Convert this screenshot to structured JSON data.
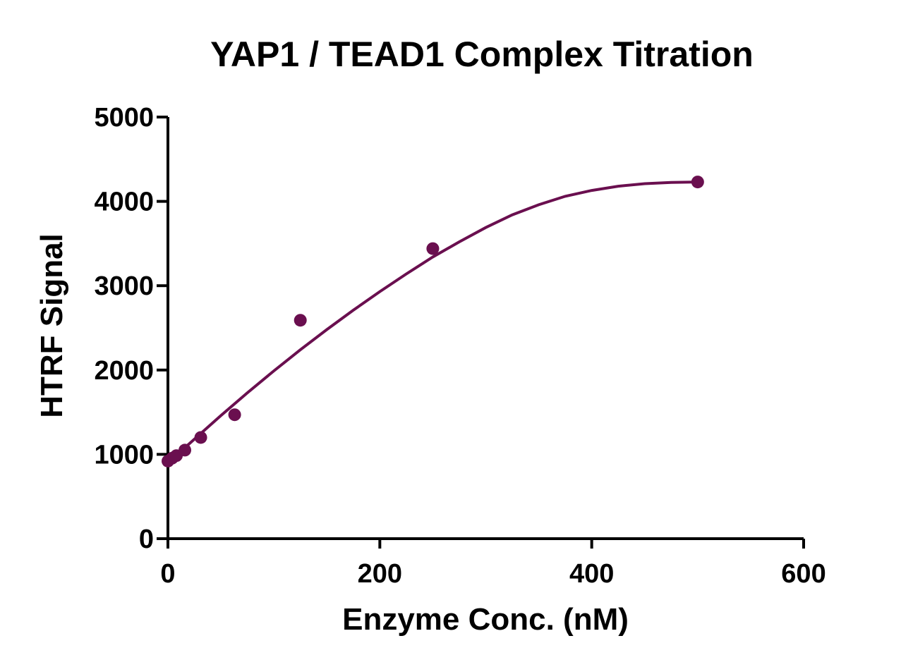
{
  "chart_data": {
    "type": "scatter",
    "title": "YAP1 / TEAD1 Complex Titration",
    "xlabel": "Enzyme Conc. (nM)",
    "ylabel": "HTRF Signal",
    "xlim": [
      0,
      600
    ],
    "ylim": [
      0,
      5000
    ],
    "xticks": [
      0,
      200,
      400,
      600
    ],
    "yticks": [
      0,
      1000,
      2000,
      3000,
      4000,
      5000
    ],
    "grid": false,
    "legend": "none",
    "color": "#6a0f4f",
    "series": [
      {
        "points": [
          {
            "x": 0,
            "y": 920
          },
          {
            "x": 4,
            "y": 955
          },
          {
            "x": 8,
            "y": 985
          },
          {
            "x": 16,
            "y": 1050
          },
          {
            "x": 31,
            "y": 1200
          },
          {
            "x": 63,
            "y": 1470
          },
          {
            "x": 125,
            "y": 2590
          },
          {
            "x": 250,
            "y": 3440
          },
          {
            "x": 500,
            "y": 4230
          }
        ],
        "fit_curve": [
          {
            "x": 0,
            "y": 900
          },
          {
            "x": 25,
            "y": 1180
          },
          {
            "x": 50,
            "y": 1460
          },
          {
            "x": 75,
            "y": 1730
          },
          {
            "x": 100,
            "y": 1990
          },
          {
            "x": 125,
            "y": 2240
          },
          {
            "x": 150,
            "y": 2480
          },
          {
            "x": 175,
            "y": 2710
          },
          {
            "x": 200,
            "y": 2930
          },
          {
            "x": 225,
            "y": 3140
          },
          {
            "x": 250,
            "y": 3340
          },
          {
            "x": 275,
            "y": 3520
          },
          {
            "x": 300,
            "y": 3690
          },
          {
            "x": 325,
            "y": 3840
          },
          {
            "x": 350,
            "y": 3960
          },
          {
            "x": 375,
            "y": 4060
          },
          {
            "x": 400,
            "y": 4130
          },
          {
            "x": 425,
            "y": 4180
          },
          {
            "x": 450,
            "y": 4210
          },
          {
            "x": 475,
            "y": 4225
          },
          {
            "x": 500,
            "y": 4230
          }
        ]
      }
    ]
  }
}
